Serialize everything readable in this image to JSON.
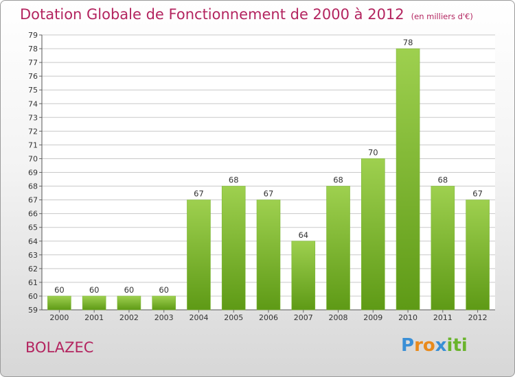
{
  "title": "Dotation Globale de Fonctionnement de 2000 à 2012",
  "subtitle": "(en milliers d'€)",
  "town": "BOLAZEC",
  "logo": [
    "P",
    "r",
    "o",
    "x",
    "i",
    "ti"
  ],
  "colors": {
    "title": "#b3245f",
    "bar_top": "#9ed04f",
    "bar_bottom": "#5e9a16",
    "grid": "#c8c8c8"
  },
  "chart_data": {
    "type": "bar",
    "categories": [
      "2000",
      "2001",
      "2002",
      "2003",
      "2004",
      "2005",
      "2006",
      "2007",
      "2008",
      "2009",
      "2010",
      "2011",
      "2012"
    ],
    "values": [
      60,
      60,
      60,
      60,
      67,
      68,
      67,
      64,
      68,
      70,
      78,
      68,
      67
    ],
    "title": "Dotation Globale de Fonctionnement de 2000 à 2012",
    "ylim": [
      59,
      79
    ],
    "y_ticks": [
      59,
      60,
      61,
      62,
      63,
      64,
      65,
      66,
      67,
      68,
      69,
      70,
      71,
      72,
      73,
      74,
      75,
      76,
      77,
      78,
      79
    ],
    "grid": true,
    "legend": "none"
  }
}
